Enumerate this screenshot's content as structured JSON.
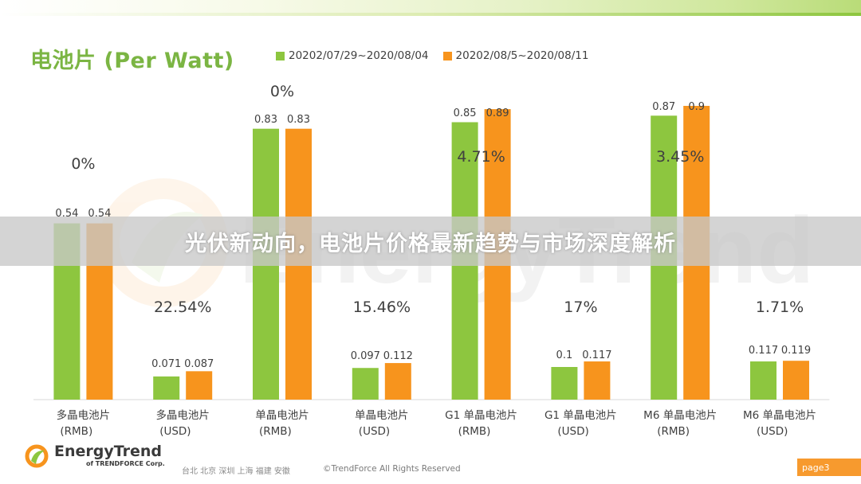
{
  "title": "电池片 (Per Watt)",
  "banner": "光伏新动向，电池片价格最新趋势与市场深度解析",
  "watermark": "EnergyTrend",
  "colors": {
    "series1": "#8dc63f",
    "series2": "#f7941d",
    "title": "#7bb543",
    "axis": "#d9d9d9",
    "page_tag": "#f79a2e"
  },
  "chart_data": {
    "type": "bar",
    "title": "电池片 (Per Watt)",
    "categories": [
      [
        "多晶电池片",
        "(RMB)"
      ],
      [
        "多晶电池片",
        "(USD)"
      ],
      [
        "单晶电池片",
        "(RMB)"
      ],
      [
        "单晶电池片",
        "(USD)"
      ],
      [
        "G1 单晶电池片",
        "(RMB)"
      ],
      [
        "G1 单晶电池片",
        "(USD)"
      ],
      [
        "M6 单晶电池片",
        "(RMB)"
      ],
      [
        "M6 单晶电池片",
        "(USD)"
      ]
    ],
    "series": [
      {
        "name": "20202/07/29~2020/08/04",
        "color": "#8dc63f",
        "values": [
          0.54,
          0.071,
          0.83,
          0.097,
          0.85,
          0.1,
          0.87,
          0.117
        ]
      },
      {
        "name": "20202/08/5~2020/08/11",
        "color": "#f7941d",
        "values": [
          0.54,
          0.087,
          0.83,
          0.112,
          0.89,
          0.117,
          0.9,
          0.119
        ]
      }
    ],
    "value_labels": [
      [
        "0.54",
        "0.54"
      ],
      [
        "0.071",
        "0.087"
      ],
      [
        "0.83",
        "0.83"
      ],
      [
        "0.097",
        "0.112"
      ],
      [
        "0.85",
        "0.89"
      ],
      [
        "0.1",
        "0.117"
      ],
      [
        "0.87",
        "0.9"
      ],
      [
        "0.117",
        "0.119"
      ]
    ],
    "percent_changes": [
      "0%",
      "22.54%",
      "0%",
      "15.46%",
      "4.71%",
      "17%",
      "3.45%",
      "1.71%"
    ],
    "legend_position": "top",
    "grid": false
  },
  "footer": {
    "logo_name": "EnergyTrend",
    "logo_sub": "of TRENDFORCE Corp.",
    "cities": "台北  北京  深圳  上海  福建  安徽",
    "copyright": "©TrendForce All Rights Reserved",
    "page": "page3"
  }
}
